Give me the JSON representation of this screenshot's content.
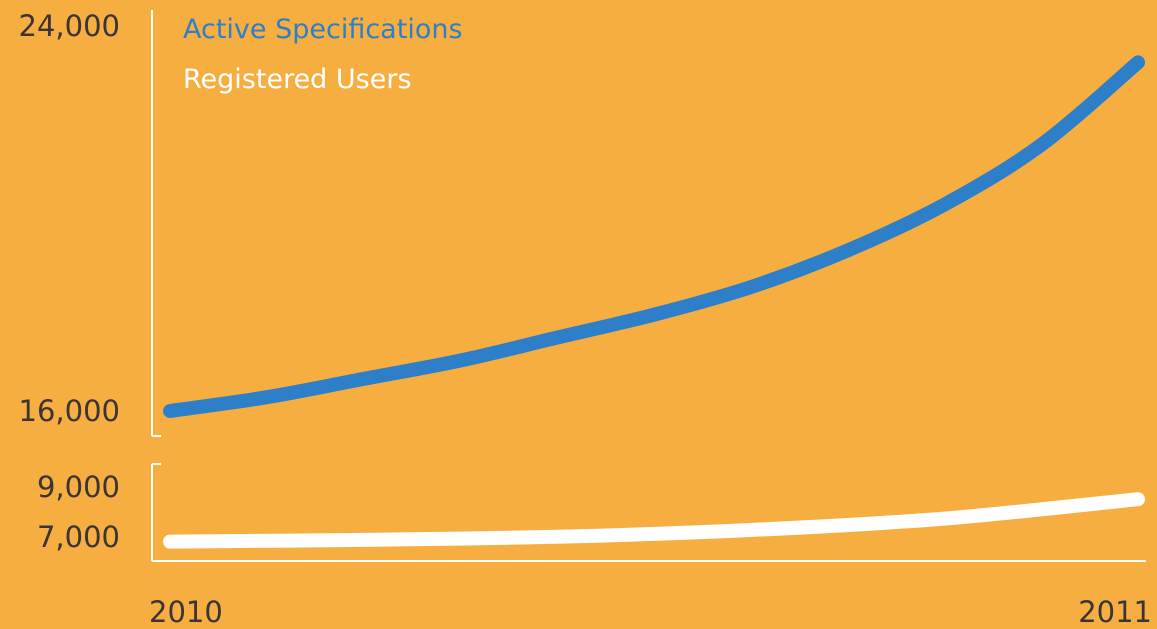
{
  "colors": {
    "background": "#F7AE40",
    "axis": "#FFFFFF",
    "tick_text": "#3A3436",
    "specs": "#2D7FC9",
    "users": "#FFFFFF"
  },
  "chart_data": {
    "type": "line",
    "title": "",
    "xlabel": "",
    "ylabel": "",
    "x_ticks": [
      "2010",
      "2011"
    ],
    "axis_break": true,
    "legend_position": "top-left",
    "legend": [
      "Active Specifications",
      "Registered Users"
    ],
    "panels": [
      {
        "name": "upper",
        "ylim": [
          16000,
          24000
        ],
        "y_ticks": [
          "24,000",
          "16,000"
        ],
        "y_tick_values": [
          24000,
          16000
        ]
      },
      {
        "name": "lower",
        "ylim": [
          6000,
          10000
        ],
        "y_ticks": [
          "9,000",
          "7,000"
        ],
        "y_tick_values": [
          9000,
          7000
        ]
      }
    ],
    "series": [
      {
        "name": "Active Specifications",
        "panel": "upper",
        "x": [
          2010.0,
          2010.1,
          2010.2,
          2010.3,
          2010.4,
          2010.5,
          2010.6,
          2010.7,
          2010.8,
          2010.9,
          2011.0
        ],
        "values": [
          16000,
          16300,
          16700,
          17100,
          17600,
          18100,
          18700,
          19500,
          20500,
          21800,
          23600
        ]
      },
      {
        "name": "Registered Users",
        "panel": "lower",
        "x": [
          2010.0,
          2010.2,
          2010.4,
          2010.6,
          2010.8,
          2011.0
        ],
        "values": [
          6800,
          6870,
          7000,
          7280,
          7750,
          8550
        ]
      }
    ]
  }
}
